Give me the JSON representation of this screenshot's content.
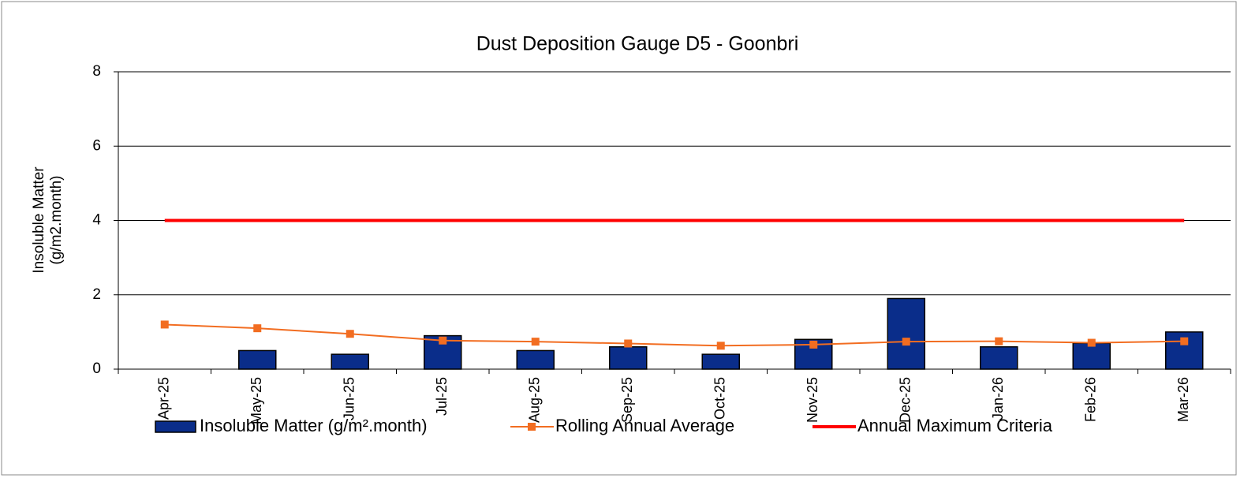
{
  "chart_data": {
    "type": "bar",
    "title": "Dust Deposition Gauge D5 - Goonbri",
    "ylabel": [
      "Insoluble Matter",
      "(g/m2.month)"
    ],
    "categories": [
      "Apr-25",
      "May-25",
      "Jun-25",
      "Jul-25",
      "Aug-25",
      "Sep-25",
      "Oct-25",
      "Nov-25",
      "Dec-25",
      "Jan-26",
      "Feb-26",
      "Mar-26"
    ],
    "series": [
      {
        "name": "Insoluble Matter (g/m².month)",
        "type": "bar",
        "color": "#0a2d8a",
        "values": [
          null,
          0.5,
          0.4,
          0.9,
          0.5,
          0.6,
          0.4,
          0.8,
          1.9,
          0.6,
          0.7,
          1.0
        ]
      },
      {
        "name": "Rolling Annual Average",
        "type": "line",
        "marker": true,
        "color": "#f26d21",
        "values": [
          1.2,
          1.1,
          0.95,
          0.77,
          0.74,
          0.69,
          0.63,
          0.66,
          0.74,
          0.75,
          0.71,
          0.75
        ]
      },
      {
        "name": "Annual Maximum Criteria",
        "type": "line",
        "marker": false,
        "color": "#ff0000",
        "values": [
          4,
          4,
          4,
          4,
          4,
          4,
          4,
          4,
          4,
          4,
          4,
          4
        ]
      }
    ],
    "ylim": [
      0,
      8
    ],
    "yticks": [
      0,
      2,
      4,
      6,
      8
    ],
    "grid": true,
    "legend": "bottom"
  }
}
